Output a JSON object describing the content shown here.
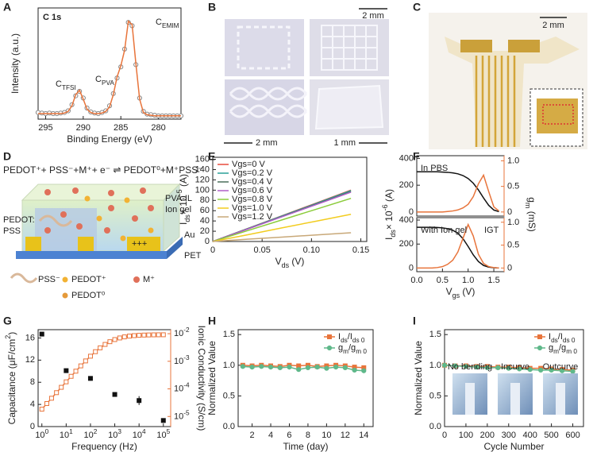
{
  "panel_labels": [
    "A",
    "B",
    "C",
    "D",
    "E",
    "F",
    "G",
    "H",
    "I"
  ],
  "images": {
    "B": {
      "scale_bars": [
        "2 mm",
        "2 mm",
        "1 mm"
      ]
    },
    "C": {
      "scale_bar": "2 mm"
    }
  },
  "schematic": {
    "equation": "PEDOT⁺+ PSS⁻+M⁺+ e⁻ ⇌ PEDOT⁰+M⁺PSS⁻",
    "labels": [
      "PVA-IL",
      "Ion gel",
      "PEDOT:",
      "PSS",
      "Au",
      "PET",
      "+++"
    ],
    "legend": [
      "PSS⁻",
      "PEDOT⁺",
      "PEDOT⁰",
      "M⁺"
    ]
  },
  "chart_data": [
    {
      "type": "line",
      "title": "C 1s",
      "title_color": "#e8743b",
      "x": [
        296,
        295.5,
        295,
        294.5,
        294,
        293.5,
        293,
        292.5,
        292,
        291.5,
        291,
        290.5,
        290,
        289.5,
        289,
        288.5,
        288,
        287.5,
        287,
        286.5,
        286,
        285.5,
        285,
        284.5,
        284,
        283.5,
        283,
        282.5,
        282,
        281.5,
        281,
        280.5,
        280,
        279.5,
        279,
        278.5,
        278,
        277.5,
        277
      ],
      "series": [
        {
          "style": "markers",
          "marker": "circle-open",
          "color": "#8a8a8a",
          "values": [
            0.06,
            0.055,
            0.05,
            0.055,
            0.05,
            0.05,
            0.055,
            0.06,
            0.075,
            0.13,
            0.21,
            0.25,
            0.19,
            0.1,
            0.065,
            0.055,
            0.05,
            0.06,
            0.075,
            0.12,
            0.23,
            0.37,
            0.47,
            0.63,
            0.87,
            0.84,
            0.49,
            0.19,
            0.07,
            0.045,
            0.04,
            0.035,
            0.03,
            0.03,
            0.03,
            0.03,
            0.03,
            0.03,
            0.03
          ]
        },
        {
          "style": "line",
          "color": "#e8743b",
          "values": [
            0.05,
            0.05,
            0.05,
            0.05,
            0.05,
            0.05,
            0.05,
            0.055,
            0.07,
            0.12,
            0.22,
            0.26,
            0.18,
            0.09,
            0.06,
            0.05,
            0.05,
            0.055,
            0.07,
            0.11,
            0.22,
            0.38,
            0.48,
            0.62,
            0.88,
            0.85,
            0.5,
            0.18,
            0.06,
            0.04,
            0.035,
            0.03,
            0.03,
            0.03,
            0.03,
            0.03,
            0.03,
            0.03,
            0.03
          ]
        }
      ],
      "xlim": [
        296,
        277
      ],
      "xticks": [
        295,
        290,
        285,
        280
      ],
      "ylim": [
        0,
        1
      ],
      "yticks": [],
      "xlabel": [
        "Binding Energy (eV)"
      ],
      "ylabel": [
        "Intensity (a.u.)"
      ],
      "annotations": [
        [
          "C",
          {
            "sub": "EMIM"
          }
        ],
        [
          "C",
          {
            "sub": "TFSI"
          }
        ],
        [
          "C",
          {
            "sub": "PVA"
          }
        ]
      ],
      "grid": false
    },
    {
      "type": "line",
      "x": [
        0,
        0.035,
        0.07,
        0.105,
        0.14
      ],
      "series": [
        {
          "name": "Vgs=0 V",
          "style": "line",
          "color": "#e84a3c",
          "values": [
            0,
            25,
            50,
            75,
            100
          ]
        },
        {
          "name": "Vgs=0.2 V",
          "style": "line",
          "color": "#2aa198",
          "values": [
            0,
            24.8,
            49.5,
            74.2,
            99
          ]
        },
        {
          "name": "Vgs=0.4 V",
          "style": "line",
          "color": "#4a6f5a",
          "values": [
            0,
            24.3,
            48.5,
            72.8,
            97
          ]
        },
        {
          "name": "Vgs=0.6 V",
          "style": "line",
          "color": "#b05fc7",
          "values": [
            0,
            24,
            48,
            72,
            96
          ]
        },
        {
          "name": "Vgs=0.8 V",
          "style": "line",
          "color": "#8ccc3c",
          "values": [
            0,
            21,
            42,
            63,
            84
          ]
        },
        {
          "name": "Vgs=1.0 V",
          "style": "line",
          "color": "#f2cc1f",
          "values": [
            0,
            13,
            26.5,
            39.7,
            53
          ]
        },
        {
          "name": "Vgs=1.2 V",
          "style": "line",
          "color": "#c8a878",
          "values": [
            0,
            4.5,
            8.5,
            12.8,
            17
          ]
        }
      ],
      "xlim": [
        0,
        0.156
      ],
      "xticks": [
        0,
        0.05,
        {
          "value": 0.1,
          "label": "0.10"
        },
        0.15
      ],
      "ylim": [
        0,
        164
      ],
      "yticks": [
        0,
        20,
        40,
        60,
        80,
        100,
        120,
        140,
        160
      ],
      "xlabel": [
        "V",
        {
          "sub": "ds"
        },
        " (V)"
      ],
      "ylabel": [
        "I",
        {
          "sub": "ds"
        },
        "× 10",
        {
          "sup": "-5"
        },
        " (A)"
      ],
      "legend": "top-left",
      "grid": false
    },
    {
      "type": "line",
      "x": [
        0,
        0.1,
        0.2,
        0.3,
        0.4,
        0.5,
        0.6,
        0.7,
        0.8,
        0.9,
        1.0,
        1.1,
        1.2,
        1.3,
        1.4,
        1.5,
        1.6
      ],
      "series": [
        {
          "style": "line",
          "color": "#111111",
          "values": [
            300,
            300,
            300,
            300,
            300,
            298,
            296,
            292,
            285,
            272,
            250,
            215,
            165,
            105,
            50,
            15,
            3
          ]
        },
        {
          "style": "line",
          "color": "#e8743b",
          "axis": "y2",
          "values": [
            0,
            0,
            0,
            0,
            0,
            0,
            0.01,
            0.02,
            0.04,
            0.08,
            0.15,
            0.3,
            0.55,
            0.72,
            0.4,
            0.1,
            0.02
          ]
        }
      ],
      "xlim": [
        0,
        1.7
      ],
      "xticks": [],
      "ylim": [
        -30,
        420
      ],
      "yticks": [
        0,
        200,
        400
      ],
      "y2lim": [
        -0.08,
        1.1
      ],
      "y2ticks": [
        0,
        0.5,
        {
          "value": 1,
          "label": "1.0"
        }
      ],
      "y2color": "#e8743b",
      "ylabel": [
        "I",
        {
          "sub": "ds"
        },
        "× 10",
        {
          "sup": "-6"
        },
        " (A)"
      ],
      "y2label": [
        "g",
        {
          "sub": "m"
        },
        " (mS)"
      ],
      "annotations": [
        [
          "In PBS"
        ]
      ],
      "grid": false
    },
    {
      "type": "line",
      "x": [
        0,
        0.1,
        0.2,
        0.3,
        0.4,
        0.5,
        0.6,
        0.7,
        0.8,
        0.9,
        1.0,
        1.1,
        1.2,
        1.3,
        1.4,
        1.5,
        1.6
      ],
      "series": [
        {
          "style": "line",
          "color": "#111111",
          "values": [
            340,
            340,
            340,
            340,
            338,
            335,
            328,
            315,
            290,
            245,
            180,
            110,
            55,
            22,
            8,
            3,
            1
          ]
        },
        {
          "style": "line",
          "color": "#e8743b",
          "axis": "y2",
          "values": [
            0,
            0,
            0,
            0,
            0.01,
            0.03,
            0.08,
            0.17,
            0.35,
            0.65,
            0.95,
            0.7,
            0.3,
            0.1,
            0.03,
            0.01,
            0
          ]
        }
      ],
      "xlim": [
        0,
        1.7
      ],
      "xticks": [
        {
          "value": 0,
          "label": "0.0"
        },
        0.5,
        {
          "value": 1,
          "label": "1.0"
        },
        1.5
      ],
      "ylim": [
        -30,
        420
      ],
      "yticks": [
        0,
        200,
        400
      ],
      "y2lim": [
        -0.08,
        1.1
      ],
      "y2ticks": [
        0,
        0.5,
        {
          "value": 1,
          "label": "1.0"
        }
      ],
      "y2color": "#e8743b",
      "xlabel": [
        "V",
        {
          "sub": "gs"
        },
        " (V)"
      ],
      "annotations": [
        [
          "With Ion gel"
        ],
        [
          "IGT"
        ]
      ],
      "grid": false
    },
    {
      "type": "scatter",
      "xlog": true,
      "series": [
        {
          "style": "markers",
          "marker": "square",
          "color": "#111111",
          "x": [
            1,
            10,
            100,
            1000,
            10000,
            100000
          ],
          "values": [
            16.7,
            10.1,
            8.7,
            5.8,
            4.7,
            1.1
          ],
          "errors": [
            0.3,
            0.3,
            0.4,
            0.3,
            0.8,
            0.2
          ]
        },
        {
          "style": "line+markers",
          "marker": "square-open",
          "color": "#e8743b",
          "axis": "y2",
          "x": [
            1,
            1.6,
            2.5,
            4,
            6.3,
            10,
            16,
            25,
            40,
            63,
            100,
            160,
            250,
            400,
            630,
            1000,
            1600,
            2500,
            4000,
            6300,
            10000,
            16000,
            25000,
            40000,
            63000,
            100000
          ],
          "values": [
            1.84e-05,
            2.94e-05,
            4.58e-05,
            7.3e-05,
            0.000114,
            0.00018,
            0.000285,
            0.000438,
            0.000681,
            0.00103,
            0.00153,
            0.00223,
            0.00307,
            0.00409,
            0.00513,
            0.00613,
            0.00701,
            0.00767,
            0.00818,
            0.00852,
            0.00876,
            0.00892,
            0.00902,
            0.00909,
            0.00913,
            0.00915
          ]
        }
      ],
      "xlim": [
        0.7,
        200000
      ],
      "xticks": [
        {
          "value": 1,
          "label": "10",
          "sup": "0"
        },
        {
          "value": 10,
          "label": "10",
          "sup": "1"
        },
        {
          "value": 100,
          "label": "10",
          "sup": "2"
        },
        {
          "value": 1000,
          "label": "10",
          "sup": "3"
        },
        {
          "value": 10000,
          "label": "10",
          "sup": "4"
        },
        {
          "value": 100000,
          "label": "10",
          "sup": "5"
        }
      ],
      "ylim": [
        0,
        17.5
      ],
      "yticks": [
        0,
        4,
        8,
        12,
        16
      ],
      "y2log": true,
      "y2lim": [
        4.3e-06,
        0.014
      ],
      "y2ticks": [
        {
          "value": 1e-05,
          "label": "10",
          "sup": "-5"
        },
        {
          "value": 0.0001,
          "label": "10",
          "sup": "-4"
        },
        {
          "value": 0.001,
          "label": "10",
          "sup": "-3"
        },
        {
          "value": 0.01,
          "label": "10",
          "sup": "-2"
        }
      ],
      "y2color": "#e8743b",
      "xlabel": [
        "Frequency (Hz)"
      ],
      "ylabel": [
        "Capacitance (μF/cm",
        {
          "sup": "2"
        },
        ")"
      ],
      "y2label": [
        "Ionic Conductivity (S/cm)"
      ],
      "grid": false
    },
    {
      "type": "line",
      "x": [
        1,
        2,
        3,
        4,
        5,
        6,
        7,
        8,
        9,
        10,
        11,
        12,
        13,
        14
      ],
      "series": [
        {
          "name": [
            "I",
            {
              "sub": "ds"
            },
            "/I",
            {
              "sub": "ds 0"
            }
          ],
          "style": "line+markers",
          "marker": "square",
          "color": "#e8743b",
          "values": [
            1.0,
            0.99,
            1.0,
            0.99,
            0.98,
            1.0,
            0.99,
            1.0,
            0.98,
            0.99,
            1.0,
            0.99,
            0.97,
            0.96
          ]
        },
        {
          "name": [
            "g",
            {
              "sub": "m"
            },
            "/g",
            {
              "sub": "m 0"
            }
          ],
          "style": "line+markers",
          "marker": "circle",
          "color": "#5fb88a",
          "values": [
            0.98,
            0.97,
            0.98,
            0.97,
            0.96,
            0.97,
            0.93,
            0.96,
            0.97,
            0.95,
            0.97,
            0.96,
            0.92,
            0.91
          ]
        }
      ],
      "xlim": [
        0.5,
        15
      ],
      "xticks": [
        2,
        4,
        6,
        8,
        10,
        12,
        14
      ],
      "ylim": [
        0,
        1.58
      ],
      "yticks": [
        {
          "value": 0,
          "label": "0.0"
        },
        0.5,
        {
          "value": 1,
          "label": "1.0"
        },
        1.5
      ],
      "xlabel": [
        "Time (day)"
      ],
      "ylabel": [
        "Normalized Value"
      ],
      "legend": "top-right",
      "grid": false
    },
    {
      "type": "line",
      "x": [
        0,
        50,
        100,
        150,
        200,
        250,
        300,
        350,
        400,
        450,
        500,
        550,
        600
      ],
      "series": [
        {
          "name": [
            "I",
            {
              "sub": "ds"
            },
            "/I",
            {
              "sub": "ds 0"
            }
          ],
          "style": "line+markers",
          "marker": "square",
          "color": "#e8743b",
          "values": [
            1,
            0.99,
            0.99,
            0.98,
            0.98,
            0.97,
            0.97,
            0.96,
            0.95,
            0.95,
            0.94,
            0.93,
            0.92
          ]
        },
        {
          "name": [
            "g",
            {
              "sub": "m"
            },
            "/g",
            {
              "sub": "m 0"
            }
          ],
          "style": "line+markers",
          "marker": "circle",
          "color": "#5fb88a",
          "values": [
            1,
            0.99,
            0.98,
            0.97,
            0.96,
            0.96,
            0.95,
            0.94,
            0.93,
            0.92,
            0.92,
            0.91,
            0.9
          ]
        }
      ],
      "xlim": [
        0,
        650
      ],
      "xticks": [
        0,
        100,
        200,
        300,
        400,
        500,
        600
      ],
      "ylim": [
        0,
        1.58
      ],
      "yticks": [
        {
          "value": 0,
          "label": "0.0"
        },
        0.5,
        {
          "value": 1,
          "label": "1.0"
        },
        1.5
      ],
      "xlabel": [
        "Cycle Number"
      ],
      "ylabel": [
        "Normalized Value"
      ],
      "legend": "top-right",
      "insets": [
        "No bending",
        "Incurve",
        "Outcurve"
      ],
      "grid": false
    }
  ]
}
